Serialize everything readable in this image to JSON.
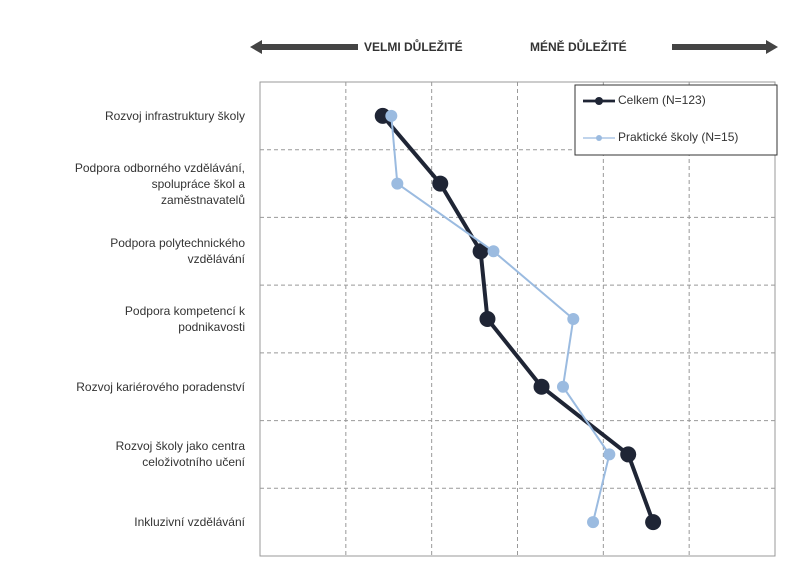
{
  "chart_data": {
    "type": "line",
    "header_left": "VELMI DŮLEŽITÉ",
    "header_right": "MÉNĚ DŮLEŽITÉ",
    "categories": [
      "Rozvoj infrastruktury školy",
      "Podpora odborného vzdělávání,\nspolupráce škol a\nzaměstnavatelů",
      "Podpora polytechnického\nvzdělávání",
      "Podpora kompetencí k\npodnikavosti",
      "Rozvoj kariérového poradenství",
      "Rozvoj školy jako centra\nceloživotního učení",
      "Inkluzivní vzdělávání"
    ],
    "series": [
      {
        "name": "Celkem (N=123)",
        "color": "#1f2535",
        "values": [
          1.43,
          2.1,
          2.57,
          2.65,
          3.28,
          4.29,
          4.58
        ]
      },
      {
        "name": "Praktické školy (N=15)",
        "color": "#9bbbe0",
        "values": [
          1.53,
          1.6,
          2.72,
          3.65,
          3.53,
          4.07,
          3.88
        ]
      }
    ],
    "xlim": [
      0,
      6
    ],
    "xticks": [
      1,
      2,
      3,
      4,
      5
    ],
    "grid": true,
    "legend": "upper right"
  }
}
